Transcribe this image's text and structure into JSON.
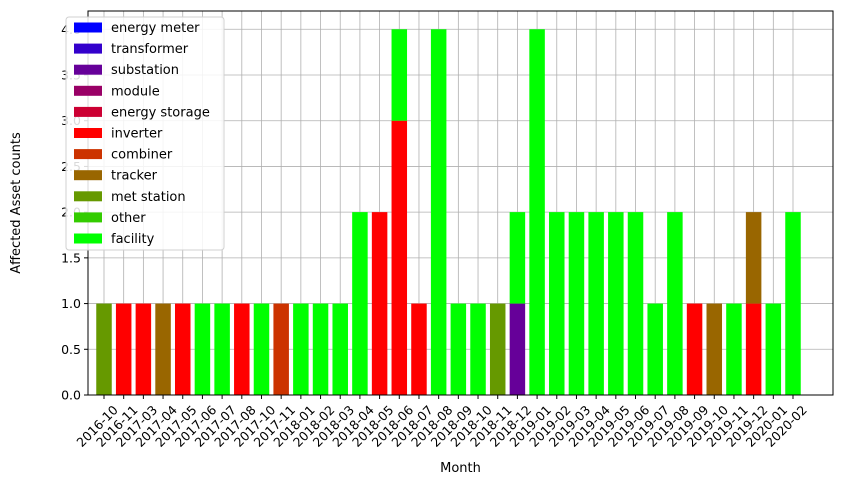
{
  "chart_data": {
    "type": "bar",
    "stacked": true,
    "xlabel": "Month",
    "ylabel": "Affected Asset counts",
    "ylim": [
      0,
      4.2
    ],
    "yticks": [
      0.0,
      0.5,
      1.0,
      1.5,
      2.0,
      2.5,
      3.0,
      3.5,
      4.0
    ],
    "ytick_labels": [
      "0.0",
      "0.5",
      "1.0",
      "1.5",
      "2.0",
      "2.5",
      "3.0",
      "3.5",
      "4.0"
    ],
    "grid": true,
    "legend_position": "top-left",
    "categories": [
      "2016-10",
      "2016-11",
      "2017-03",
      "2017-04",
      "2017-05",
      "2017-06",
      "2017-07",
      "2017-08",
      "2017-10",
      "2017-11",
      "2018-01",
      "2018-02",
      "2018-03",
      "2018-04",
      "2018-05",
      "2018-06",
      "2018-07",
      "2018-08",
      "2018-09",
      "2018-10",
      "2018-11",
      "2018-12",
      "2019-01",
      "2019-02",
      "2019-03",
      "2019-04",
      "2019-05",
      "2019-06",
      "2019-07",
      "2019-08",
      "2019-09",
      "2019-10",
      "2019-11",
      "2019-12",
      "2020-01",
      "2020-02"
    ],
    "series": [
      {
        "name": "energy meter",
        "color": "#0000ff",
        "values": [
          0,
          0,
          0,
          0,
          0,
          0,
          0,
          0,
          0,
          0,
          0,
          0,
          0,
          0,
          0,
          0,
          0,
          0,
          0,
          0,
          0,
          0,
          0,
          0,
          0,
          0,
          0,
          0,
          0,
          0,
          0,
          0,
          0,
          0,
          0,
          0
        ]
      },
      {
        "name": "transformer",
        "color": "#3300cc",
        "values": [
          0,
          0,
          0,
          0,
          0,
          0,
          0,
          0,
          0,
          0,
          0,
          0,
          0,
          0,
          0,
          0,
          0,
          0,
          0,
          0,
          0,
          0,
          0,
          0,
          0,
          0,
          0,
          0,
          0,
          0,
          0,
          0,
          0,
          0,
          0,
          0
        ]
      },
      {
        "name": "substation",
        "color": "#660099",
        "values": [
          0,
          0,
          0,
          0,
          0,
          0,
          0,
          0,
          0,
          0,
          0,
          0,
          0,
          0,
          0,
          0,
          0,
          0,
          0,
          0,
          0,
          1,
          0,
          0,
          0,
          0,
          0,
          0,
          0,
          0,
          0,
          0,
          0,
          0,
          0,
          0
        ]
      },
      {
        "name": "module",
        "color": "#990066",
        "values": [
          0,
          0,
          0,
          0,
          0,
          0,
          0,
          0,
          0,
          0,
          0,
          0,
          0,
          0,
          0,
          0,
          0,
          0,
          0,
          0,
          0,
          0,
          0,
          0,
          0,
          0,
          0,
          0,
          0,
          0,
          0,
          0,
          0,
          0,
          0,
          0
        ]
      },
      {
        "name": "energy storage",
        "color": "#cc0033",
        "values": [
          0,
          0,
          0,
          0,
          0,
          0,
          0,
          0,
          0,
          0,
          0,
          0,
          0,
          0,
          0,
          0,
          0,
          0,
          0,
          0,
          0,
          0,
          0,
          0,
          0,
          0,
          0,
          0,
          0,
          0,
          0,
          0,
          0,
          0,
          0,
          0
        ]
      },
      {
        "name": "inverter",
        "color": "#ff0000",
        "values": [
          0,
          1,
          1,
          0,
          1,
          0,
          0,
          1,
          0,
          0,
          0,
          0,
          0,
          0,
          2,
          3,
          1,
          0,
          0,
          0,
          0,
          0,
          0,
          0,
          0,
          0,
          0,
          0,
          0,
          0,
          1,
          0,
          0,
          1,
          0,
          0
        ]
      },
      {
        "name": "combiner",
        "color": "#cc3300",
        "values": [
          0,
          0,
          0,
          0,
          0,
          0,
          0,
          0,
          0,
          1,
          0,
          0,
          0,
          0,
          0,
          0,
          0,
          0,
          0,
          0,
          0,
          0,
          0,
          0,
          0,
          0,
          0,
          0,
          0,
          0,
          0,
          0,
          0,
          0,
          0,
          0
        ]
      },
      {
        "name": "tracker",
        "color": "#996600",
        "values": [
          0,
          0,
          0,
          1,
          0,
          0,
          0,
          0,
          0,
          0,
          0,
          0,
          0,
          0,
          0,
          0,
          0,
          0,
          0,
          0,
          0,
          0,
          0,
          0,
          0,
          0,
          0,
          0,
          0,
          0,
          0,
          1,
          0,
          1,
          0,
          0
        ]
      },
      {
        "name": "met station",
        "color": "#669900",
        "values": [
          1,
          0,
          0,
          0,
          0,
          0,
          0,
          0,
          0,
          0,
          0,
          0,
          0,
          0,
          0,
          0,
          0,
          0,
          0,
          0,
          1,
          0,
          0,
          0,
          0,
          0,
          0,
          0,
          0,
          0,
          0,
          0,
          0,
          0,
          0,
          0
        ]
      },
      {
        "name": "other",
        "color": "#33cc00",
        "values": [
          0,
          0,
          0,
          0,
          0,
          0,
          0,
          0,
          0,
          0,
          0,
          0,
          0,
          0,
          0,
          0,
          0,
          0,
          0,
          0,
          0,
          0,
          0,
          0,
          0,
          0,
          0,
          0,
          0,
          0,
          0,
          0,
          0,
          0,
          0,
          0
        ]
      },
      {
        "name": "facility",
        "color": "#00ff00",
        "values": [
          0,
          0,
          0,
          0,
          0,
          1,
          1,
          0,
          1,
          0,
          1,
          1,
          1,
          2,
          0,
          1,
          0,
          4,
          1,
          1,
          0,
          1,
          4,
          2,
          2,
          2,
          2,
          2,
          1,
          2,
          0,
          0,
          1,
          0,
          1,
          2
        ]
      }
    ]
  }
}
